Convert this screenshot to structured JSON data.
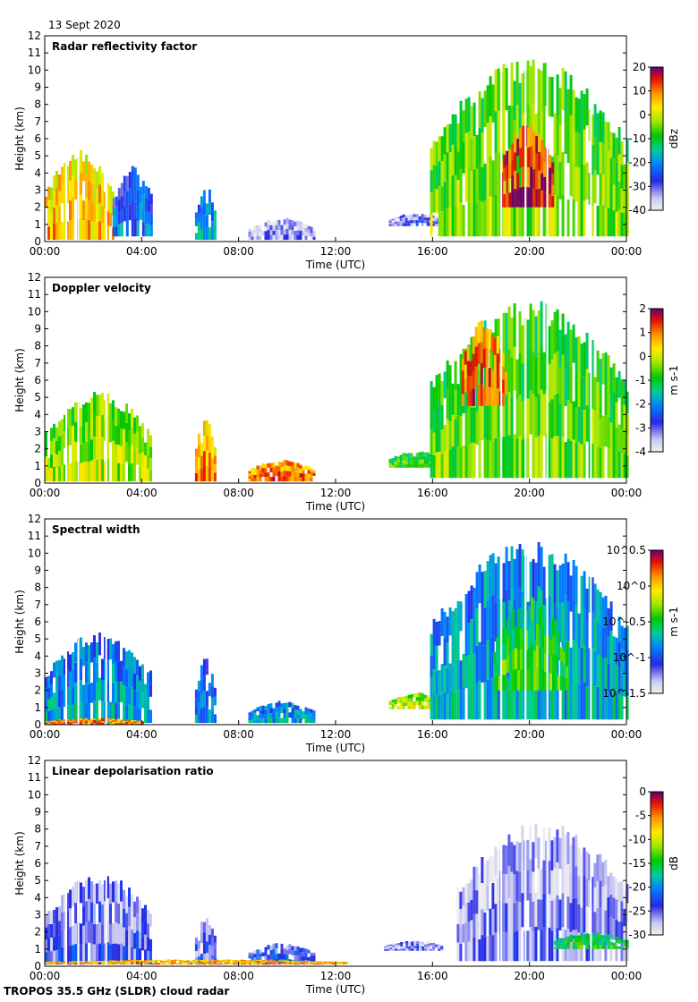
{
  "date": "13 Sept 2020",
  "footer": "TROPOS 35.5 GHz (SLDR) cloud radar",
  "chart_data": [
    {
      "type": "heatmap",
      "title": "Radar reflectivity factor",
      "xlabel": "Time (UTC)",
      "ylabel": "Height (km)",
      "x_ticks": [
        "00:00",
        "04:00",
        "08:00",
        "12:00",
        "16:00",
        "20:00",
        "00:00"
      ],
      "y_ticks": [
        "0",
        "1",
        "2",
        "3",
        "4",
        "5",
        "6",
        "7",
        "8",
        "9",
        "10",
        "11",
        "12"
      ],
      "xlim_hours": [
        0,
        24
      ],
      "ylim_km": [
        0,
        12
      ],
      "colorbar": {
        "ticks": [
          "20",
          "10",
          "0",
          "-10",
          "-20",
          "-30",
          "-40"
        ],
        "unit": "dBz",
        "range": [
          -40,
          20
        ]
      },
      "cloud_regions": [
        {
          "t0": 0.0,
          "t1": 2.8,
          "h0": 0.1,
          "h1": 5.4,
          "level": 0.72
        },
        {
          "t0": 2.8,
          "t1": 4.4,
          "h0": 0.3,
          "h1": 4.5,
          "level": 0.25
        },
        {
          "t0": 6.2,
          "t1": 7.0,
          "h0": 0.1,
          "h1": 3.3,
          "level": 0.32
        },
        {
          "t0": 8.4,
          "t1": 11.1,
          "h0": 0.1,
          "h1": 1.4,
          "level": 0.05
        },
        {
          "t0": 14.2,
          "t1": 16.4,
          "h0": 0.9,
          "h1": 1.7,
          "level": 0.12
        },
        {
          "t0": 15.9,
          "t1": 24.0,
          "h0": 0.3,
          "h1": 10.8,
          "level": 0.55
        },
        {
          "t0": 18.8,
          "t1": 21.0,
          "h0": 2.0,
          "h1": 7.0,
          "level": 0.88
        }
      ]
    },
    {
      "type": "heatmap",
      "title": "Doppler velocity",
      "xlabel": "Time (UTC)",
      "ylabel": "Height (km)",
      "x_ticks": [
        "00:00",
        "04:00",
        "08:00",
        "12:00",
        "16:00",
        "20:00",
        "00:00"
      ],
      "y_ticks": [
        "0",
        "1",
        "2",
        "3",
        "4",
        "5",
        "6",
        "7",
        "8",
        "9",
        "10",
        "11",
        "12"
      ],
      "xlim_hours": [
        0,
        24
      ],
      "ylim_km": [
        0,
        12
      ],
      "colorbar": {
        "ticks": [
          "2",
          "1",
          "0",
          "-1",
          "-2",
          "-3",
          "-4"
        ],
        "unit": "m s-1",
        "range": [
          -4,
          2
        ]
      },
      "cloud_regions": [
        {
          "t0": 0.0,
          "t1": 4.4,
          "h0": 0.1,
          "h1": 5.4,
          "level": 0.58
        },
        {
          "t0": 6.2,
          "t1": 7.0,
          "h0": 0.1,
          "h1": 4.0,
          "level": 0.76
        },
        {
          "t0": 8.4,
          "t1": 11.1,
          "h0": 0.1,
          "h1": 1.4,
          "level": 0.8
        },
        {
          "t0": 14.2,
          "t1": 16.4,
          "h0": 0.9,
          "h1": 1.9,
          "level": 0.5
        },
        {
          "t0": 15.9,
          "t1": 24.0,
          "h0": 0.3,
          "h1": 10.8,
          "level": 0.52
        },
        {
          "t0": 17.2,
          "t1": 19.0,
          "h0": 4.5,
          "h1": 9.6,
          "level": 0.82
        }
      ]
    },
    {
      "type": "heatmap",
      "title": "Spectral width",
      "xlabel": "Time (UTC)",
      "ylabel": "Height (km)",
      "x_ticks": [
        "00:00",
        "04:00",
        "08:00",
        "12:00",
        "16:00",
        "20:00",
        "00:00"
      ],
      "y_ticks": [
        "0",
        "1",
        "2",
        "3",
        "4",
        "5",
        "6",
        "7",
        "8",
        "9",
        "10",
        "11",
        "12"
      ],
      "xlim_hours": [
        0,
        24
      ],
      "ylim_km": [
        0,
        12
      ],
      "colorbar": {
        "ticks": [
          "10^0.5",
          "10^0",
          "10^-0.5",
          "10^-1",
          "10^-1.5"
        ],
        "unit": "m s-1",
        "range": [
          -1.5,
          0.5
        ]
      },
      "cloud_regions": [
        {
          "t0": 0.0,
          "t1": 4.4,
          "h0": 0.1,
          "h1": 5.5,
          "level": 0.3
        },
        {
          "t0": 0.0,
          "t1": 4.0,
          "h0": 0.0,
          "h1": 0.4,
          "level": 0.8
        },
        {
          "t0": 6.2,
          "t1": 7.0,
          "h0": 0.1,
          "h1": 4.0,
          "level": 0.28
        },
        {
          "t0": 8.4,
          "t1": 11.1,
          "h0": 0.1,
          "h1": 1.4,
          "level": 0.3
        },
        {
          "t0": 14.2,
          "t1": 16.4,
          "h0": 0.9,
          "h1": 1.9,
          "level": 0.6
        },
        {
          "t0": 15.9,
          "t1": 24.0,
          "h0": 0.3,
          "h1": 10.8,
          "level": 0.32
        },
        {
          "t0": 18.5,
          "t1": 21.5,
          "h0": 2.0,
          "h1": 7.5,
          "level": 0.48
        }
      ]
    },
    {
      "type": "heatmap",
      "title": "Linear depolarisation ratio",
      "xlabel": "Time (UTC)",
      "ylabel": "Height (km)",
      "x_ticks": [
        "00:00",
        "04:00",
        "08:00",
        "12:00",
        "16:00",
        "20:00",
        "00:00"
      ],
      "y_ticks": [
        "0",
        "1",
        "2",
        "3",
        "4",
        "5",
        "6",
        "7",
        "8",
        "9",
        "10",
        "11",
        "12"
      ],
      "xlim_hours": [
        0,
        24
      ],
      "ylim_km": [
        0,
        12
      ],
      "colorbar": {
        "ticks": [
          "0",
          "-5",
          "-10",
          "-15",
          "-20",
          "-25",
          "-30"
        ],
        "unit": "dB",
        "range": [
          -30,
          0
        ]
      },
      "cloud_regions": [
        {
          "t0": 0.0,
          "t1": 4.4,
          "h0": 0.1,
          "h1": 5.5,
          "level": 0.12
        },
        {
          "t0": 6.2,
          "t1": 7.0,
          "h0": 0.1,
          "h1": 3.0,
          "level": 0.12
        },
        {
          "t0": 8.4,
          "t1": 11.1,
          "h0": 0.1,
          "h1": 1.4,
          "level": 0.18
        },
        {
          "t0": 14.0,
          "t1": 16.4,
          "h0": 0.9,
          "h1": 1.5,
          "level": 0.1
        },
        {
          "t0": 17.0,
          "t1": 24.0,
          "h0": 0.3,
          "h1": 8.5,
          "level": 0.08
        },
        {
          "t0": 21.0,
          "t1": 24.0,
          "h0": 1.0,
          "h1": 2.0,
          "level": 0.45
        },
        {
          "t0": 0.0,
          "t1": 12.5,
          "h0": 0.1,
          "h1": 0.4,
          "level": 0.75
        }
      ]
    }
  ]
}
